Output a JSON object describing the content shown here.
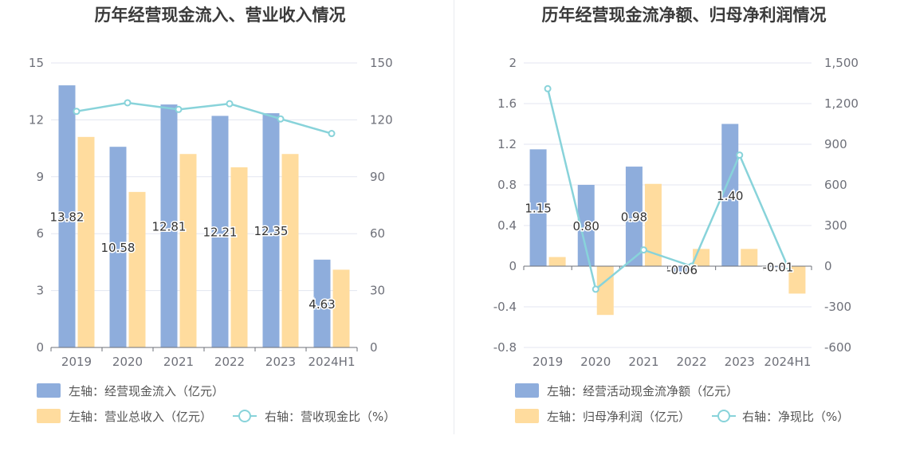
{
  "charts": {
    "left": {
      "title": "历年经营现金流入、营业收入情况",
      "legend": {
        "bar1": "左轴：经营现金流入（亿元）",
        "bar2": "左轴：营业总收入（亿元）",
        "line": "右轴：营收现金比（%）"
      }
    },
    "right": {
      "title": "历年经营现金流净额、归母净利润情况",
      "legend": {
        "bar1": "左轴：经营活动现金流净额（亿元）",
        "bar2": "左轴：归母净利润（亿元）",
        "line": "右轴：净现比（%）"
      }
    }
  },
  "colors": {
    "bar1": "#8eaddc",
    "bar2": "#ffdc9e",
    "line": "#88d3da",
    "grid": "#e3e6f0",
    "axis": "#6e7079"
  },
  "chart_data": [
    {
      "type": "bar",
      "title": "历年经营现金流入、营业收入情况",
      "categories": [
        "2019",
        "2020",
        "2021",
        "2022",
        "2023",
        "2024H1"
      ],
      "ylim": [
        0,
        15
      ],
      "yticks": [
        "0",
        "3",
        "6",
        "9",
        "12",
        "15"
      ],
      "y2lim": [
        0,
        150
      ],
      "y2ticks": [
        "0",
        "30",
        "60",
        "90",
        "120",
        "150"
      ],
      "series": [
        {
          "name": "左轴：经营现金流入（亿元）",
          "axis": "left",
          "kind": "bar",
          "values": [
            13.82,
            10.58,
            12.81,
            12.21,
            12.35,
            4.63
          ],
          "labels": [
            "13.82",
            "10.58",
            "12.81",
            "12.21",
            "12.35",
            "4.63"
          ]
        },
        {
          "name": "左轴：营业总收入（亿元）",
          "axis": "left",
          "kind": "bar",
          "values": [
            11.1,
            8.2,
            10.2,
            9.5,
            10.2,
            4.1
          ]
        },
        {
          "name": "右轴：营收现金比（%）",
          "axis": "right",
          "kind": "line",
          "values": [
            124.5,
            129,
            125.5,
            128.5,
            120.5,
            112.8
          ]
        }
      ]
    },
    {
      "type": "bar",
      "title": "历年经营现金流净额、归母净利润情况",
      "categories": [
        "2019",
        "2020",
        "2021",
        "2022",
        "2023",
        "2024H1"
      ],
      "ylim": [
        -0.8,
        2
      ],
      "yticks": [
        "-0.8",
        "-0.4",
        "0",
        "0.4",
        "0.8",
        "1.2",
        "1.6",
        "2"
      ],
      "y2lim": [
        -600,
        1500
      ],
      "y2ticks": [
        "-600",
        "-300",
        "0",
        "300",
        "600",
        "900",
        "1,200",
        "1,500"
      ],
      "series": [
        {
          "name": "左轴：经营活动现金流净额（亿元）",
          "axis": "left",
          "kind": "bar",
          "values": [
            1.15,
            0.8,
            0.98,
            -0.06,
            1.4,
            -0.01
          ],
          "labels": [
            "1.15",
            "0.80",
            "0.98",
            "-0.06",
            "1.40",
            "-0.01"
          ]
        },
        {
          "name": "左轴：归母净利润（亿元）",
          "axis": "left",
          "kind": "bar",
          "values": [
            0.09,
            -0.48,
            0.81,
            0.17,
            0.17,
            -0.27
          ]
        },
        {
          "name": "右轴：净现比（%）",
          "axis": "right",
          "kind": "line",
          "values": [
            1310,
            -170,
            120,
            0,
            820,
            0
          ]
        }
      ]
    }
  ]
}
